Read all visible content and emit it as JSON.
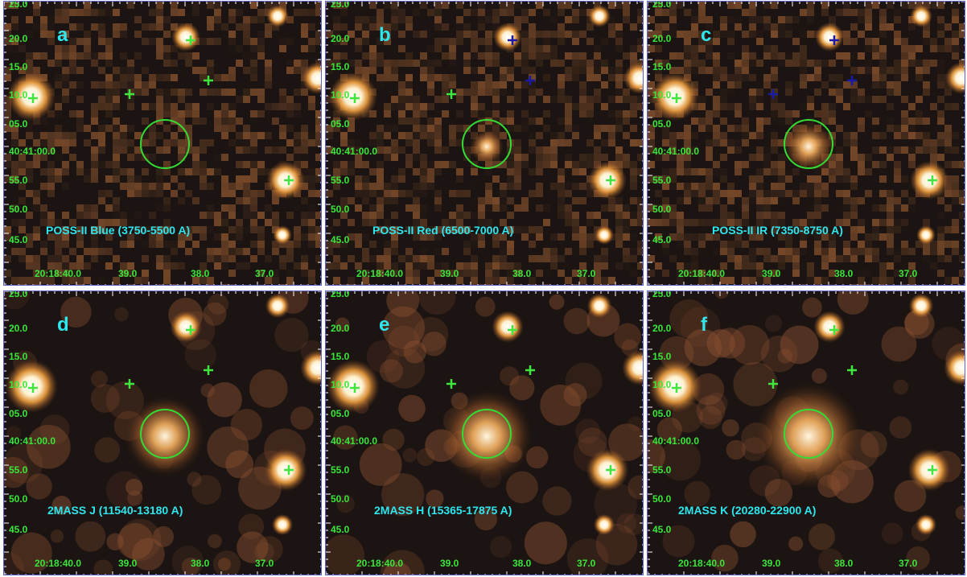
{
  "panels": [
    {
      "letter": "a",
      "caption": "POSS-II Blue (3750-5500 A)",
      "style": "noisy",
      "plus_color": "#3ee63e"
    },
    {
      "letter": "b",
      "caption": "POSS-II Red (6500-7000 A)",
      "style": "noisy",
      "plus_color": "#1a1aa8"
    },
    {
      "letter": "c",
      "caption": "POSS-II IR (7350-8750 A)",
      "style": "noisy",
      "plus_color": "#1a1aa8"
    },
    {
      "letter": "d",
      "caption": "2MASS J (11540-13180 A)",
      "style": "smooth",
      "plus_color": "#3ee63e"
    },
    {
      "letter": "e",
      "caption": "2MASS H (15365-17875 A)",
      "style": "smooth",
      "plus_color": "#3ee63e"
    },
    {
      "letter": "f",
      "caption": "2MASS K (20280-22900 A)",
      "style": "smooth",
      "plus_color": "#3ee63e"
    }
  ],
  "dec_labels": [
    "25.0",
    "20.0",
    "15.0",
    "10.0",
    "05.0",
    "40:41:00.0",
    "55.0",
    "50.0",
    "45.0"
  ],
  "ra_labels": [
    "20:18:40.0",
    "39.0",
    "38.0",
    "37.0"
  ],
  "colors": {
    "star_core": "#ffffff",
    "star_glow": "#f0a040",
    "background": "#1b1412",
    "circle": "#33dd33",
    "text_cyan": "#2fe6ef",
    "text_green": "#39e639",
    "frame": "#5a64c8"
  }
}
